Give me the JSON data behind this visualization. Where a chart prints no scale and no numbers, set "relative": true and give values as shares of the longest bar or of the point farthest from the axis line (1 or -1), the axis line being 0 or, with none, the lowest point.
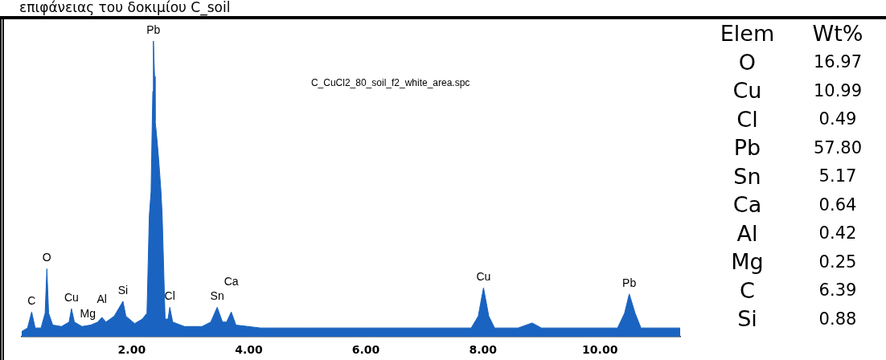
{
  "chart_data": [
    {
      "type": "area",
      "title": "επιφάνειας του δοκιμίου C_soil",
      "relative": true,
      "color": "#1a63c0",
      "marker": "none",
      "grid": false,
      "legend": false,
      "x": [
        0.12,
        0.22,
        0.29,
        0.35,
        0.45,
        0.52,
        0.55,
        0.58,
        0.65,
        0.8,
        0.93,
        0.97,
        1.02,
        1.15,
        1.3,
        1.42,
        1.49,
        1.56,
        1.7,
        1.85,
        1.9,
        2.05,
        2.18,
        2.26,
        2.3,
        2.33,
        2.34,
        2.36,
        2.37,
        2.39,
        2.4,
        2.43,
        2.46,
        2.5,
        2.52,
        2.57,
        2.62,
        2.65,
        2.7,
        2.9,
        3.2,
        3.35,
        3.46,
        3.55,
        3.62,
        3.7,
        3.78,
        4.2,
        5.0,
        6.0,
        7.0,
        7.8,
        7.92,
        8.01,
        8.1,
        8.2,
        8.6,
        8.84,
        9.0,
        10.3,
        10.42,
        10.5,
        10.6,
        10.7,
        11.37
      ],
      "values": [
        0.018,
        0.03,
        0.084,
        0.03,
        0.03,
        0.08,
        0.23,
        0.08,
        0.04,
        0.035,
        0.05,
        0.095,
        0.05,
        0.035,
        0.04,
        0.05,
        0.066,
        0.05,
        0.07,
        0.12,
        0.07,
        0.045,
        0.06,
        0.08,
        0.41,
        0.49,
        0.61,
        0.83,
        1.0,
        0.88,
        0.73,
        0.67,
        0.6,
        0.49,
        0.41,
        0.06,
        0.06,
        0.1,
        0.05,
        0.035,
        0.035,
        0.05,
        0.1,
        0.05,
        0.05,
        0.084,
        0.04,
        0.03,
        0.03,
        0.03,
        0.03,
        0.03,
        0.07,
        0.166,
        0.07,
        0.03,
        0.03,
        0.047,
        0.03,
        0.03,
        0.08,
        0.145,
        0.08,
        0.03,
        0.03
      ],
      "xlim": [
        0.12,
        11.37
      ],
      "xticks": [
        {
          "value": 2,
          "label": "2.00"
        },
        {
          "value": 4,
          "label": "4.00"
        },
        {
          "value": 6,
          "label": "6.00"
        },
        {
          "value": 8,
          "label": "8.00"
        },
        {
          "value": 10,
          "label": "10.00"
        }
      ],
      "annotations": [
        {
          "text": "C",
          "x": 0.29,
          "y": 0.084
        },
        {
          "text": "O",
          "x": 0.55,
          "y": 0.23
        },
        {
          "text": "Cu",
          "x": 0.97,
          "y": 0.095
        },
        {
          "text": "Mg",
          "x": 1.25,
          "y": 0.04
        },
        {
          "text": "Al",
          "x": 1.49,
          "y": 0.066
        },
        {
          "text": "Si",
          "x": 1.85,
          "y": 0.12
        },
        {
          "text": "Pb",
          "x": 2.37,
          "y": 1.0
        },
        {
          "text": "Cl",
          "x": 2.65,
          "y": 0.1
        },
        {
          "text": "Sn",
          "x": 3.46,
          "y": 0.1
        },
        {
          "text": "Ca",
          "x": 3.7,
          "y": 0.084
        },
        {
          "text": "Cu",
          "x": 8.01,
          "y": 0.166
        },
        {
          "text": "Pb",
          "x": 10.5,
          "y": 0.145
        },
        "C_CuCl2_80_soil_f2_white_area.spc"
      ]
    },
    {
      "type": "other",
      "xlabel": "Elem",
      "ylabel": "Wt%",
      "categories": [
        "O",
        "Cu",
        "Cl",
        "Pb",
        "Sn",
        "Ca",
        "Al",
        "Mg",
        "C",
        "Si"
      ],
      "values": [
        16.97,
        10.99,
        0.49,
        57.8,
        5.17,
        0.64,
        0.42,
        0.25,
        6.39,
        0.88
      ],
      "value_labels": [
        "16.97",
        "10.99",
        "0.49",
        "57.80",
        "5.17",
        "0.64",
        "0.42",
        "0.25",
        "6.39",
        "0.88"
      ]
    }
  ]
}
